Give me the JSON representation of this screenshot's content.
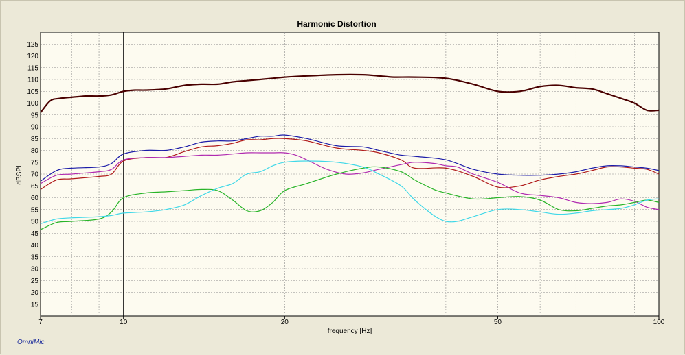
{
  "brand": "OmniMic",
  "chart_data": {
    "type": "line",
    "title": "Harmonic Distortion",
    "xlabel": "frequency [Hz]",
    "ylabel": "dBSPL",
    "x_scale": "log",
    "xlim": [
      7,
      100
    ],
    "ylim": [
      10,
      130
    ],
    "x_tick_labels": [
      "7",
      "10",
      "20",
      "50",
      "100"
    ],
    "y_tick_labels": [
      "15",
      "20",
      "25",
      "30",
      "35",
      "40",
      "45",
      "50",
      "55",
      "60",
      "65",
      "70",
      "75",
      "80",
      "85",
      "90",
      "95",
      "100",
      "105",
      "110",
      "115",
      "120",
      "125"
    ],
    "grid": true,
    "legend": "none",
    "series": [
      {
        "color": "#4a0000",
        "width": 2.2,
        "x": [
          7,
          7.3,
          7.6,
          8,
          8.5,
          9,
          9.5,
          10,
          10.5,
          11,
          12,
          13,
          14,
          15,
          16,
          17,
          18,
          19,
          20,
          22,
          25,
          28,
          30,
          32,
          35,
          40,
          45,
          50,
          55,
          60,
          65,
          70,
          75,
          80,
          85,
          90,
          95,
          100
        ],
        "y": [
          96,
          101,
          102,
          102.5,
          103,
          103,
          103.5,
          105,
          105.5,
          105.5,
          106,
          107.5,
          108,
          108,
          109,
          109.5,
          110,
          110.5,
          111,
          111.5,
          112,
          112,
          111.5,
          111,
          111,
          110.5,
          108,
          105,
          105,
          107,
          107.5,
          106.5,
          106,
          104,
          102,
          100,
          97,
          97
        ]
      },
      {
        "color": "#1c1ca8",
        "width": 1.2,
        "x": [
          7,
          7.5,
          8,
          9,
          9.5,
          10,
          11,
          12,
          13,
          14,
          15,
          16,
          17,
          18,
          19,
          20,
          22,
          25,
          28,
          30,
          33,
          35,
          40,
          45,
          50,
          55,
          60,
          65,
          70,
          75,
          80,
          85,
          90,
          95,
          100
        ],
        "y": [
          67,
          71.5,
          72.5,
          73,
          74.5,
          78.5,
          80,
          80,
          81.5,
          83.5,
          84,
          84,
          85,
          86,
          86,
          86.5,
          85,
          82,
          81.5,
          80,
          78,
          77.5,
          76,
          72,
          70,
          69.5,
          69.5,
          70,
          71,
          72.5,
          73.5,
          73.5,
          73,
          72.5,
          71.5
        ]
      },
      {
        "color": "#b01a1a",
        "width": 1.2,
        "x": [
          7,
          7.5,
          8,
          9,
          9.5,
          10,
          11,
          12,
          13,
          14,
          15,
          16,
          17,
          18,
          19,
          20,
          22,
          25,
          28,
          30,
          33,
          35,
          40,
          45,
          50,
          55,
          60,
          65,
          70,
          75,
          80,
          85,
          90,
          95,
          100
        ],
        "y": [
          63.5,
          67.5,
          68,
          69,
          70,
          75.5,
          77,
          77,
          79.5,
          81.5,
          82,
          83,
          84.5,
          84.5,
          85,
          85,
          84,
          81,
          80,
          79,
          76,
          72.5,
          72.5,
          69,
          64.5,
          65,
          67.5,
          69,
          70,
          71.5,
          73,
          73,
          72.5,
          72,
          70
        ]
      },
      {
        "color": "#b02ab0",
        "width": 1.2,
        "x": [
          7,
          7.5,
          8,
          9,
          9.5,
          10,
          11,
          12,
          13,
          14,
          15,
          16,
          17,
          18,
          19,
          20,
          21,
          22,
          24,
          26,
          28,
          30,
          33,
          35,
          38,
          40,
          42,
          45,
          50,
          55,
          60,
          65,
          70,
          75,
          80,
          85,
          90,
          95,
          100
        ],
        "y": [
          66,
          69.5,
          70,
          71,
          72,
          76,
          77,
          77,
          77.5,
          78,
          78,
          78.5,
          79,
          79,
          79,
          79,
          78,
          76,
          72,
          70,
          70.5,
          72,
          74,
          75,
          74.5,
          73.5,
          73,
          70,
          66.5,
          62,
          61,
          60,
          58,
          57.5,
          58,
          59.5,
          58.5,
          56,
          55
        ]
      },
      {
        "color": "#28b428",
        "width": 1.2,
        "x": [
          7,
          7.5,
          8,
          9,
          9.5,
          10,
          11,
          12,
          13,
          14,
          15,
          16,
          17,
          18,
          19,
          20,
          22,
          25,
          28,
          30,
          33,
          35,
          38,
          40,
          45,
          50,
          55,
          60,
          65,
          70,
          75,
          80,
          85,
          90,
          95,
          100
        ],
        "y": [
          46.5,
          49.5,
          50,
          51,
          54,
          60,
          62,
          62.5,
          63,
          63.5,
          63,
          59,
          54.5,
          54.5,
          58,
          63,
          66,
          70,
          72.5,
          73,
          71,
          67.5,
          63.5,
          62,
          59.5,
          60,
          60.5,
          59,
          55,
          54.5,
          55.5,
          56.5,
          57,
          58,
          59,
          58
        ]
      },
      {
        "color": "#40d8e8",
        "width": 1.2,
        "x": [
          7,
          7.5,
          8,
          9,
          9.5,
          10,
          11,
          12,
          13,
          14,
          15,
          16,
          17,
          18,
          19,
          20,
          22,
          25,
          28,
          30,
          33,
          35,
          38,
          40,
          42,
          45,
          50,
          55,
          60,
          65,
          70,
          75,
          80,
          85,
          90,
          95,
          100
        ],
        "y": [
          49,
          51,
          51.5,
          52,
          52.5,
          53.5,
          54,
          55,
          57,
          61,
          64,
          66,
          70,
          71,
          73.5,
          75,
          75.5,
          75,
          73,
          70,
          65,
          59,
          52.5,
          50,
          50,
          52,
          55,
          55,
          54,
          53,
          53.5,
          54.5,
          55,
          55.5,
          57,
          59,
          59.5
        ]
      }
    ]
  }
}
